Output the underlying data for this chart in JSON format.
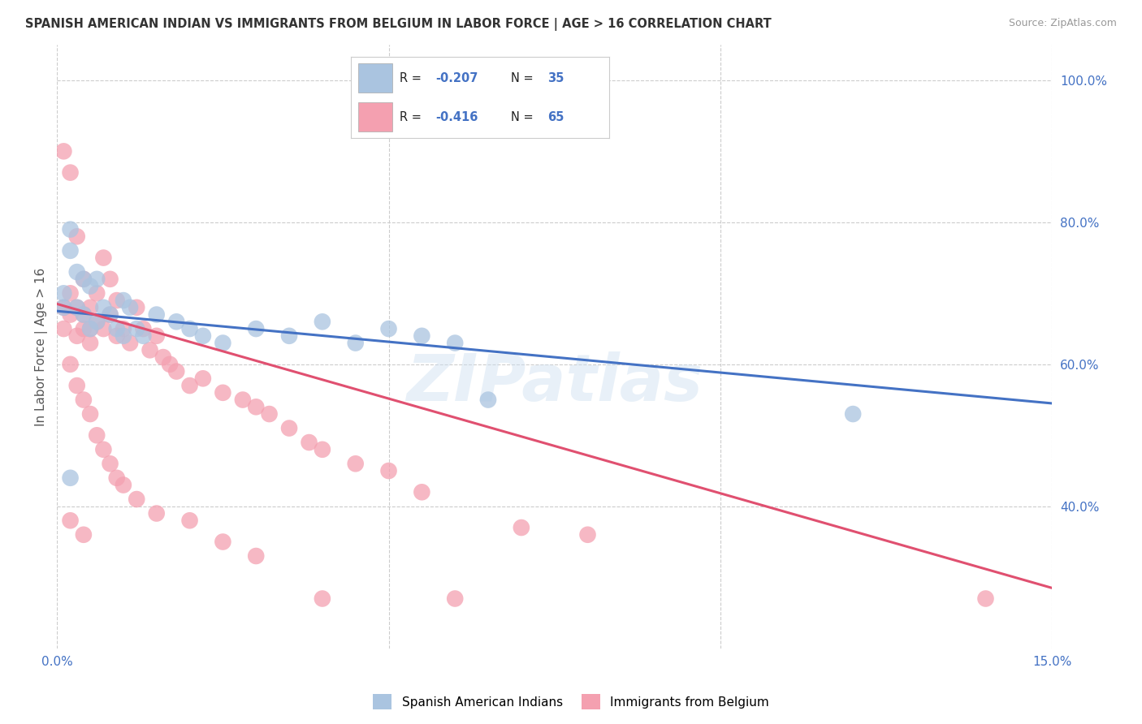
{
  "title": "SPANISH AMERICAN INDIAN VS IMMIGRANTS FROM BELGIUM IN LABOR FORCE | AGE > 16 CORRELATION CHART",
  "source": "Source: ZipAtlas.com",
  "ylabel": "In Labor Force | Age > 16",
  "xlim": [
    0.0,
    0.15
  ],
  "ylim": [
    0.2,
    1.05
  ],
  "yticks_right": [
    0.4,
    0.6,
    0.8,
    1.0
  ],
  "ytick_labels_right": [
    "40.0%",
    "60.0%",
    "80.0%",
    "100.0%"
  ],
  "grid_color": "#cccccc",
  "background_color": "#ffffff",
  "blue_color": "#aac4e0",
  "pink_color": "#f4a0b0",
  "blue_line_color": "#4472c4",
  "pink_line_color": "#e05070",
  "watermark": "ZIPatlas",
  "label1": "Spanish American Indians",
  "label2": "Immigrants from Belgium",
  "blue_scatter_x": [
    0.001,
    0.001,
    0.002,
    0.002,
    0.003,
    0.003,
    0.004,
    0.004,
    0.005,
    0.005,
    0.006,
    0.006,
    0.007,
    0.008,
    0.009,
    0.01,
    0.01,
    0.011,
    0.012,
    0.013,
    0.015,
    0.018,
    0.02,
    0.022,
    0.025,
    0.03,
    0.035,
    0.04,
    0.045,
    0.05,
    0.055,
    0.06,
    0.065,
    0.12,
    0.002
  ],
  "blue_scatter_y": [
    0.7,
    0.68,
    0.79,
    0.76,
    0.73,
    0.68,
    0.72,
    0.67,
    0.71,
    0.65,
    0.72,
    0.66,
    0.68,
    0.67,
    0.65,
    0.69,
    0.64,
    0.68,
    0.65,
    0.64,
    0.67,
    0.66,
    0.65,
    0.64,
    0.63,
    0.65,
    0.64,
    0.66,
    0.63,
    0.65,
    0.64,
    0.63,
    0.55,
    0.53,
    0.44
  ],
  "pink_scatter_x": [
    0.001,
    0.001,
    0.001,
    0.002,
    0.002,
    0.002,
    0.003,
    0.003,
    0.003,
    0.004,
    0.004,
    0.004,
    0.005,
    0.005,
    0.005,
    0.006,
    0.006,
    0.007,
    0.007,
    0.008,
    0.008,
    0.009,
    0.009,
    0.01,
    0.011,
    0.012,
    0.013,
    0.014,
    0.015,
    0.016,
    0.017,
    0.018,
    0.02,
    0.022,
    0.025,
    0.028,
    0.03,
    0.032,
    0.035,
    0.038,
    0.04,
    0.045,
    0.05,
    0.055,
    0.06,
    0.07,
    0.08,
    0.002,
    0.003,
    0.004,
    0.005,
    0.006,
    0.007,
    0.008,
    0.009,
    0.01,
    0.012,
    0.015,
    0.02,
    0.025,
    0.03,
    0.04,
    0.002,
    0.004,
    0.14
  ],
  "pink_scatter_y": [
    0.9,
    0.68,
    0.65,
    0.87,
    0.7,
    0.67,
    0.78,
    0.68,
    0.64,
    0.72,
    0.67,
    0.65,
    0.68,
    0.65,
    0.63,
    0.7,
    0.66,
    0.75,
    0.65,
    0.72,
    0.67,
    0.69,
    0.64,
    0.65,
    0.63,
    0.68,
    0.65,
    0.62,
    0.64,
    0.61,
    0.6,
    0.59,
    0.57,
    0.58,
    0.56,
    0.55,
    0.54,
    0.53,
    0.51,
    0.49,
    0.48,
    0.46,
    0.45,
    0.42,
    0.27,
    0.37,
    0.36,
    0.6,
    0.57,
    0.55,
    0.53,
    0.5,
    0.48,
    0.46,
    0.44,
    0.43,
    0.41,
    0.39,
    0.38,
    0.35,
    0.33,
    0.27,
    0.38,
    0.36,
    0.27
  ]
}
